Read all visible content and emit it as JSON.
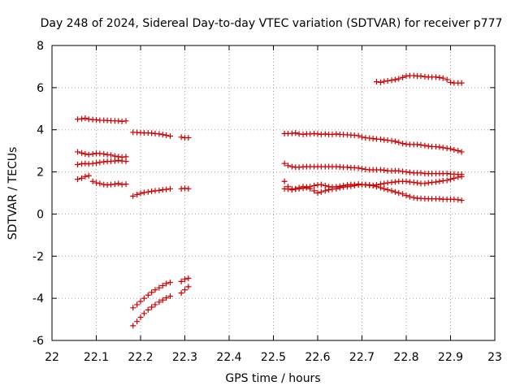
{
  "chart_data": {
    "type": "scatter",
    "title": "Day 248 of 2024, Sidereal Day-to-day VTEC variation (SDTVAR) for receiver p777",
    "xlabel": "GPS time / hours",
    "ylabel": "SDTVAR / TECUs",
    "xlim": [
      22,
      23
    ],
    "ylim": [
      -6,
      8
    ],
    "xticks": [
      "22",
      "22.1",
      "22.2",
      "22.3",
      "22.4",
      "22.5",
      "22.6",
      "22.7",
      "22.8",
      "22.9",
      "23"
    ],
    "yticks": [
      "-6",
      "-4",
      "-2",
      "0",
      "2",
      "4",
      "6",
      "8"
    ],
    "grid": true,
    "marker": "+",
    "color": "#cc0000",
    "series": [
      {
        "name": "s1-a",
        "x": [
          22.058,
          22.067,
          22.075,
          22.083,
          22.092,
          22.1,
          22.108,
          22.117,
          22.125,
          22.133,
          22.142,
          22.15,
          22.158,
          22.167
        ],
        "y": [
          4.5,
          4.52,
          4.55,
          4.5,
          4.48,
          4.47,
          4.45,
          4.45,
          4.44,
          4.43,
          4.42,
          4.42,
          4.4,
          4.42
        ]
      },
      {
        "name": "s1-b",
        "x": [
          22.058,
          22.067,
          22.075,
          22.083,
          22.092,
          22.1,
          22.108,
          22.117,
          22.125,
          22.133,
          22.142,
          22.15,
          22.158,
          22.167
        ],
        "y": [
          2.95,
          2.9,
          2.85,
          2.82,
          2.85,
          2.88,
          2.87,
          2.85,
          2.82,
          2.8,
          2.75,
          2.72,
          2.7,
          2.72
        ]
      },
      {
        "name": "s1-c",
        "x": [
          22.058,
          22.067,
          22.075,
          22.083,
          22.092,
          22.1,
          22.108,
          22.117,
          22.125,
          22.133,
          22.142,
          22.15,
          22.158,
          22.167
        ],
        "y": [
          2.35,
          2.38,
          2.4,
          2.38,
          2.4,
          2.42,
          2.45,
          2.48,
          2.5,
          2.5,
          2.52,
          2.55,
          2.52,
          2.5
        ]
      },
      {
        "name": "s1-d",
        "x": [
          22.058,
          22.067,
          22.075,
          22.083,
          22.092,
          22.1,
          22.108,
          22.117,
          22.125,
          22.133,
          22.142,
          22.15,
          22.158,
          22.167
        ],
        "y": [
          1.65,
          1.7,
          1.78,
          1.82,
          1.55,
          1.48,
          1.45,
          1.4,
          1.38,
          1.4,
          1.42,
          1.45,
          1.4,
          1.42
        ]
      },
      {
        "name": "s2-a",
        "x": [
          22.183,
          22.192,
          22.2,
          22.208,
          22.217,
          22.225,
          22.233,
          22.242,
          22.25,
          22.258,
          22.267
        ],
        "y": [
          3.88,
          3.87,
          3.86,
          3.85,
          3.85,
          3.84,
          3.82,
          3.8,
          3.77,
          3.74,
          3.7
        ]
      },
      {
        "name": "s2-b",
        "x": [
          22.183,
          22.192,
          22.2,
          22.208,
          22.217,
          22.225,
          22.233,
          22.242,
          22.25,
          22.258,
          22.267
        ],
        "y": [
          0.85,
          0.92,
          0.98,
          1.02,
          1.05,
          1.08,
          1.1,
          1.12,
          1.15,
          1.17,
          1.2
        ]
      },
      {
        "name": "s2-c",
        "x": [
          22.183,
          22.192,
          22.2,
          22.208,
          22.217,
          22.225,
          22.233,
          22.242,
          22.25,
          22.258,
          22.267
        ],
        "y": [
          -4.45,
          -4.3,
          -4.15,
          -4.0,
          -3.85,
          -3.72,
          -3.6,
          -3.5,
          -3.4,
          -3.3,
          -3.25
        ]
      },
      {
        "name": "s2-d",
        "x": [
          22.183,
          22.192,
          22.2,
          22.208,
          22.217,
          22.225,
          22.233,
          22.242,
          22.25,
          22.258,
          22.267
        ],
        "y": [
          -5.3,
          -5.1,
          -4.9,
          -4.72,
          -4.55,
          -4.42,
          -4.3,
          -4.18,
          -4.08,
          -3.98,
          -3.9
        ]
      },
      {
        "name": "s3-a",
        "x": [
          22.292,
          22.3,
          22.308
        ],
        "y": [
          3.65,
          3.62,
          3.62
        ]
      },
      {
        "name": "s3-b",
        "x": [
          22.292,
          22.3,
          22.308
        ],
        "y": [
          1.2,
          1.22,
          1.2
        ]
      },
      {
        "name": "s3-c",
        "x": [
          22.292,
          22.3,
          22.308
        ],
        "y": [
          -3.2,
          -3.1,
          -3.05
        ]
      },
      {
        "name": "s3-d",
        "x": [
          22.292,
          22.3,
          22.308
        ],
        "y": [
          -3.75,
          -3.6,
          -3.45
        ]
      },
      {
        "name": "s4-a",
        "x": [
          22.525,
          22.533,
          22.542,
          22.55,
          22.558,
          22.567,
          22.575,
          22.583,
          22.592,
          22.6,
          22.608,
          22.617,
          22.625,
          22.633,
          22.642,
          22.65,
          22.658,
          22.667,
          22.675,
          22.683,
          22.692,
          22.7,
          22.708,
          22.717,
          22.725,
          22.733,
          22.742,
          22.75,
          22.758,
          22.767,
          22.775,
          22.783,
          22.792,
          22.8,
          22.808,
          22.817,
          22.825,
          22.833,
          22.842,
          22.85,
          22.858,
          22.867,
          22.875,
          22.883,
          22.892,
          22.9,
          22.908,
          22.917,
          22.925
        ],
        "y": [
          3.82,
          3.82,
          3.83,
          3.85,
          3.8,
          3.78,
          3.8,
          3.8,
          3.82,
          3.8,
          3.78,
          3.8,
          3.78,
          3.78,
          3.8,
          3.78,
          3.77,
          3.76,
          3.75,
          3.74,
          3.72,
          3.65,
          3.62,
          3.6,
          3.58,
          3.56,
          3.55,
          3.52,
          3.5,
          3.48,
          3.45,
          3.4,
          3.35,
          3.32,
          3.3,
          3.3,
          3.3,
          3.28,
          3.25,
          3.22,
          3.2,
          3.2,
          3.18,
          3.15,
          3.12,
          3.1,
          3.05,
          3.0,
          2.95
        ]
      },
      {
        "name": "s4-b",
        "x": [
          22.525,
          22.533,
          22.542,
          22.55,
          22.558,
          22.567,
          22.575,
          22.583,
          22.592,
          22.6,
          22.608,
          22.617,
          22.625,
          22.633,
          22.642,
          22.65,
          22.658,
          22.667,
          22.675,
          22.683,
          22.692,
          22.7,
          22.708,
          22.717,
          22.725,
          22.733,
          22.742,
          22.75,
          22.758,
          22.767,
          22.775,
          22.783,
          22.792,
          22.8,
          22.808,
          22.817,
          22.825,
          22.833,
          22.842,
          22.85,
          22.858,
          22.867,
          22.875,
          22.883,
          22.892,
          22.9,
          22.908,
          22.917,
          22.925
        ],
        "y": [
          2.4,
          2.3,
          2.25,
          2.22,
          2.22,
          2.24,
          2.25,
          2.25,
          2.25,
          2.25,
          2.25,
          2.25,
          2.25,
          2.25,
          2.25,
          2.24,
          2.22,
          2.22,
          2.2,
          2.2,
          2.18,
          2.15,
          2.12,
          2.1,
          2.1,
          2.1,
          2.1,
          2.08,
          2.05,
          2.05,
          2.05,
          2.05,
          2.02,
          2.0,
          1.98,
          1.95,
          1.95,
          1.95,
          1.92,
          1.92,
          1.92,
          1.92,
          1.92,
          1.92,
          1.92,
          1.9,
          1.9,
          1.88,
          1.88
        ]
      },
      {
        "name": "s4-c",
        "x": [
          22.525,
          22.533,
          22.542,
          22.55,
          22.558,
          22.567,
          22.575,
          22.583,
          22.592,
          22.6,
          22.608,
          22.617,
          22.625,
          22.633,
          22.642,
          22.65,
          22.658,
          22.667,
          22.675,
          22.683,
          22.692,
          22.7,
          22.708,
          22.717,
          22.725,
          22.733,
          22.742,
          22.75,
          22.758,
          22.767,
          22.775,
          22.783,
          22.792,
          22.8,
          22.808,
          22.817,
          22.825,
          22.833,
          22.842,
          22.85,
          22.858,
          22.867,
          22.875,
          22.883,
          22.892,
          22.9,
          22.908,
          22.917,
          22.925
        ],
        "y": [
          1.55,
          1.3,
          1.2,
          1.18,
          1.2,
          1.22,
          1.25,
          1.3,
          1.35,
          1.38,
          1.4,
          1.35,
          1.3,
          1.28,
          1.3,
          1.32,
          1.35,
          1.38,
          1.4,
          1.4,
          1.42,
          1.4,
          1.38,
          1.36,
          1.35,
          1.38,
          1.42,
          1.45,
          1.48,
          1.5,
          1.52,
          1.55,
          1.55,
          1.55,
          1.52,
          1.5,
          1.48,
          1.45,
          1.45,
          1.48,
          1.5,
          1.52,
          1.55,
          1.58,
          1.6,
          1.65,
          1.7,
          1.75,
          1.78
        ]
      },
      {
        "name": "s4-d",
        "x": [
          22.525,
          22.533,
          22.542,
          22.55,
          22.558,
          22.567,
          22.575,
          22.583,
          22.592,
          22.6,
          22.608,
          22.617,
          22.625,
          22.633,
          22.642,
          22.65,
          22.658,
          22.667,
          22.675,
          22.683,
          22.692,
          22.7,
          22.708,
          22.717,
          22.725,
          22.733,
          22.742,
          22.75,
          22.758,
          22.767,
          22.775,
          22.783,
          22.792,
          22.8,
          22.808,
          22.817,
          22.825,
          22.833,
          22.842,
          22.85,
          22.858,
          22.867,
          22.875,
          22.883,
          22.892,
          22.9,
          22.908,
          22.917,
          22.925
        ],
        "y": [
          1.2,
          1.18,
          1.15,
          1.2,
          1.25,
          1.3,
          1.28,
          1.2,
          1.1,
          1.0,
          1.05,
          1.1,
          1.15,
          1.18,
          1.2,
          1.25,
          1.28,
          1.3,
          1.32,
          1.35,
          1.38,
          1.4,
          1.4,
          1.38,
          1.35,
          1.3,
          1.25,
          1.2,
          1.15,
          1.1,
          1.05,
          1.0,
          0.95,
          0.88,
          0.82,
          0.78,
          0.75,
          0.74,
          0.73,
          0.72,
          0.72,
          0.72,
          0.72,
          0.7,
          0.7,
          0.7,
          0.7,
          0.68,
          0.65
        ]
      },
      {
        "name": "s5",
        "x": [
          22.733,
          22.742,
          22.75,
          22.758,
          22.767,
          22.775,
          22.783,
          22.792,
          22.8,
          22.808,
          22.817,
          22.825,
          22.833,
          22.842,
          22.85,
          22.858,
          22.867,
          22.875,
          22.883,
          22.892,
          22.9,
          22.908,
          22.917,
          22.925
        ],
        "y": [
          6.28,
          6.25,
          6.3,
          6.32,
          6.35,
          6.38,
          6.42,
          6.48,
          6.55,
          6.57,
          6.57,
          6.55,
          6.55,
          6.52,
          6.5,
          6.5,
          6.5,
          6.48,
          6.45,
          6.38,
          6.25,
          6.22,
          6.22,
          6.22
        ]
      }
    ]
  }
}
